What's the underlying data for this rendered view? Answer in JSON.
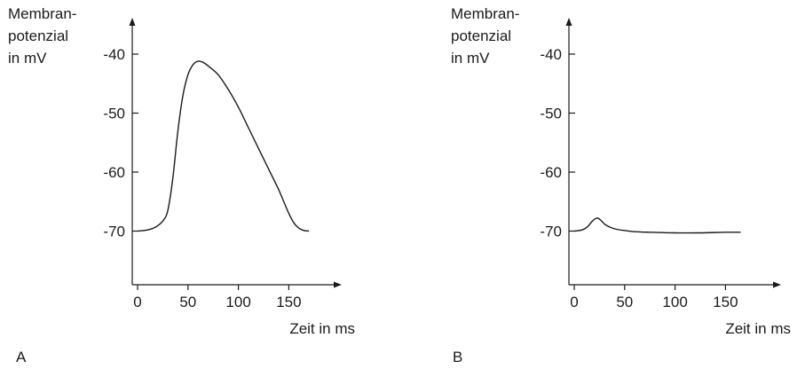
{
  "chart_data": [
    {
      "type": "line",
      "panel_label": "A",
      "ylabel": [
        "Membran-",
        "potenzial",
        "in mV"
      ],
      "xlabel": "Zeit in ms",
      "x_ticks": [
        0,
        50,
        100,
        150
      ],
      "y_ticks": [
        -40,
        -50,
        -60,
        -70
      ],
      "xlim": [
        -5,
        200
      ],
      "ylim": [
        -79,
        -33
      ],
      "series": [
        {
          "x": [
            0,
            10,
            18,
            25,
            30,
            35,
            40,
            45,
            50,
            55,
            60,
            65,
            70,
            80,
            90,
            100,
            110,
            120,
            130,
            140,
            145,
            150,
            155,
            160,
            165,
            170
          ],
          "y": [
            -70,
            -69.8,
            -69.3,
            -68.3,
            -66.5,
            -61,
            -53,
            -47,
            -43.5,
            -41.8,
            -41.2,
            -41.4,
            -42,
            -43.5,
            -46,
            -49,
            -52.5,
            -56,
            -59.5,
            -63,
            -65,
            -67,
            -68.6,
            -69.5,
            -69.9,
            -70
          ]
        }
      ]
    },
    {
      "type": "line",
      "panel_label": "B",
      "ylabel": [
        "Membran-",
        "potenzial",
        "in mV"
      ],
      "xlabel": "Zeit in ms",
      "x_ticks": [
        0,
        50,
        100,
        150
      ],
      "y_ticks": [
        -40,
        -50,
        -60,
        -70
      ],
      "xlim": [
        -5,
        200
      ],
      "ylim": [
        -79,
        -33
      ],
      "series": [
        {
          "x": [
            0,
            8,
            13,
            17,
            20,
            23,
            26,
            30,
            35,
            42,
            50,
            60,
            75,
            100,
            125,
            150,
            165
          ],
          "y": [
            -70,
            -69.8,
            -69.3,
            -68.5,
            -68,
            -67.8,
            -68.1,
            -68.8,
            -69.3,
            -69.7,
            -69.9,
            -70.1,
            -70.2,
            -70.3,
            -70.3,
            -70.2,
            -70.2
          ]
        }
      ]
    }
  ]
}
